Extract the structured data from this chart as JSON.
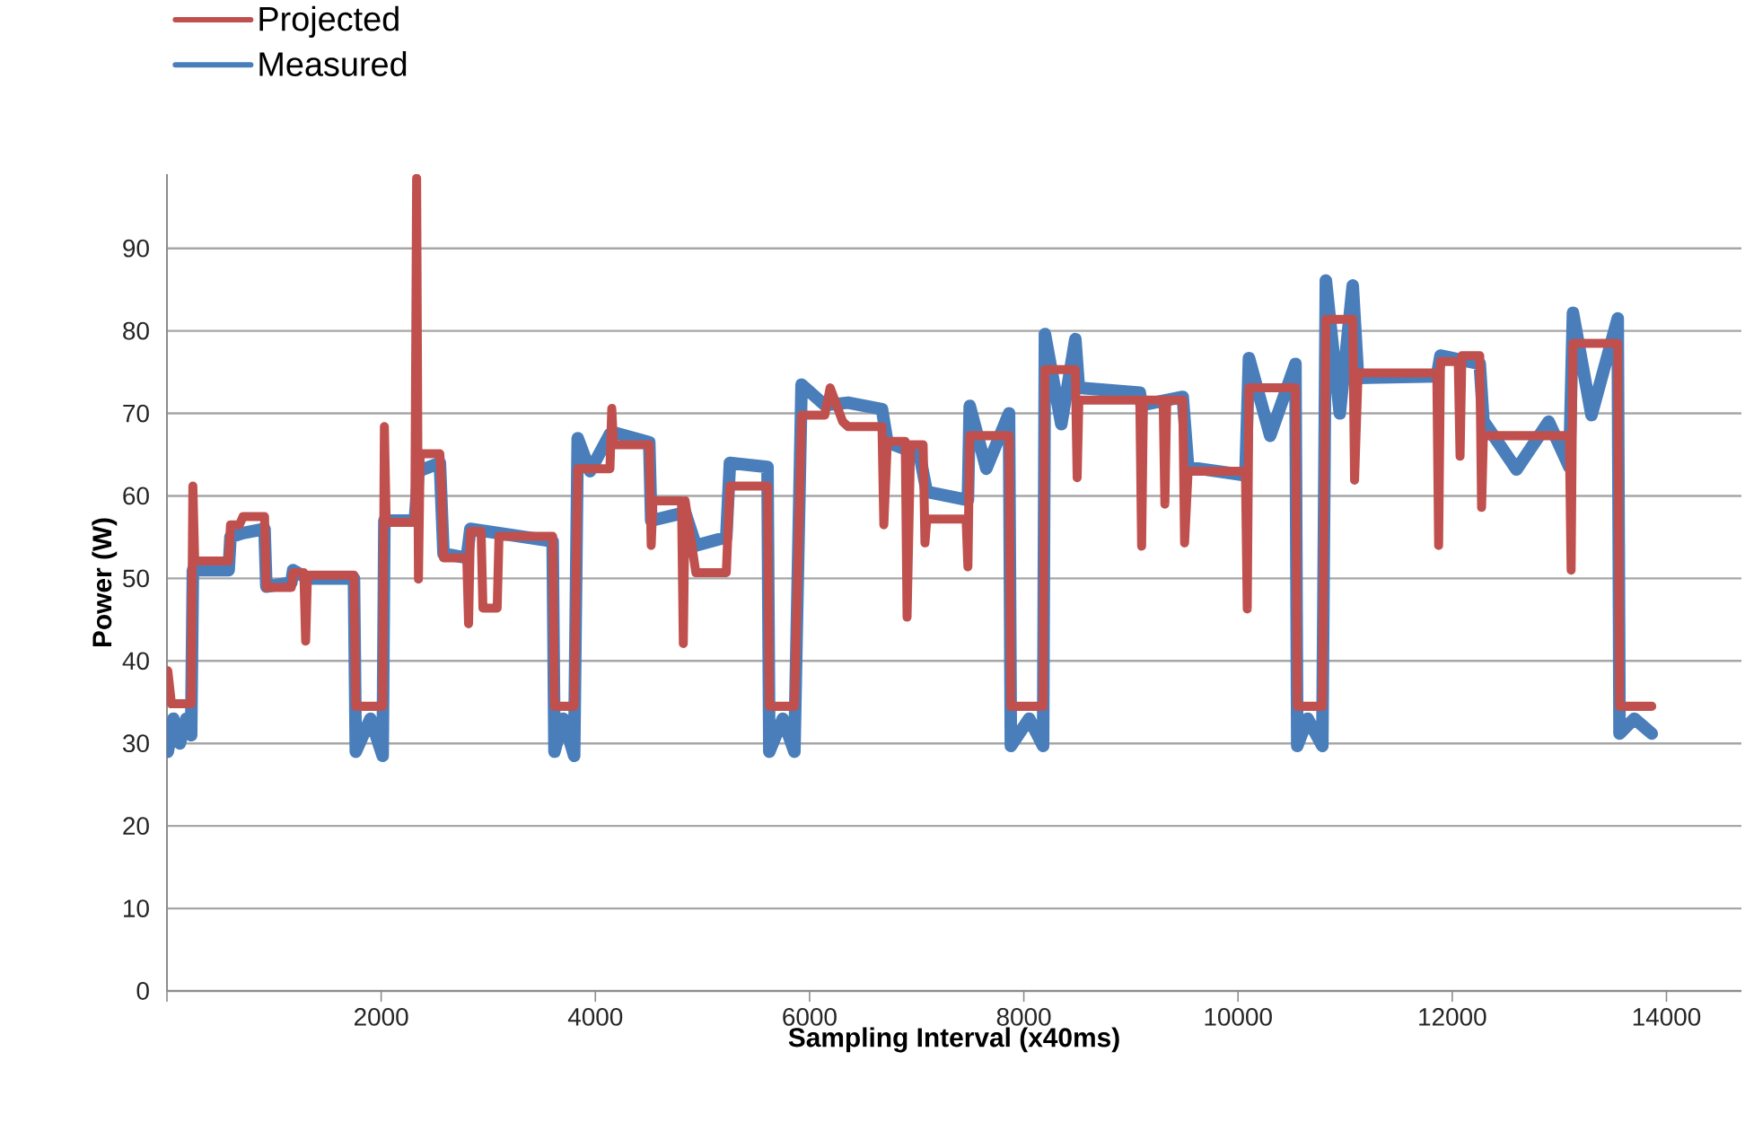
{
  "chart_data": {
    "type": "line",
    "xlabel": "Sampling Interval (x40ms)",
    "ylabel": "Power (W)",
    "xlim": [
      0,
      14700
    ],
    "ylim": [
      0,
      99
    ],
    "xticks": [
      {
        "value": 0,
        "label": null
      },
      2000,
      4000,
      6000,
      8000,
      10000,
      12000,
      14000
    ],
    "yticks": [
      0,
      10,
      20,
      30,
      40,
      50,
      60,
      70,
      80,
      90
    ],
    "grid": "y",
    "legend": "top left",
    "marker": "none",
    "line_style": "solid",
    "series": [
      {
        "name": "Projected",
        "color": "#c0504d",
        "x": [
          8,
          42,
          226,
          242,
          259,
          576,
          593,
          677,
          710,
          911,
          928,
          1161,
          1178,
          1278,
          1295,
          1312,
          1746,
          1763,
          2014,
          2030,
          2047,
          2314,
          2331,
          2348,
          2364,
          2548,
          2565,
          2582,
          2799,
          2816,
          2833,
          2933,
          2950,
          3083,
          3100,
          3601,
          3618,
          3802,
          3835,
          4136,
          4153,
          4169,
          4503,
          4521,
          4537,
          4804,
          4821,
          4838,
          4938,
          5222,
          5256,
          5607,
          5624,
          5858,
          5925,
          6142,
          6192,
          6309,
          6359,
          6676,
          6693,
          6726,
          6893,
          6910,
          6943,
          7060,
          7077,
          7094,
          7461,
          7478,
          7495,
          7862,
          7879,
          8180,
          8197,
          8481,
          8498,
          8514,
          9083,
          9100,
          9117,
          9301,
          9317,
          9334,
          9484,
          9501,
          9534,
          10069,
          10086,
          10102,
          10536,
          10553,
          10787,
          10820,
          11071,
          11088,
          11121,
          11856,
          11873,
          11890,
          12056,
          12073,
          12090,
          12257,
          12274,
          12291,
          13093,
          13110,
          13127,
          13545,
          13562,
          13863
        ],
        "values": [
          38.8,
          34.8,
          34.8,
          61.2,
          52.1,
          52.1,
          56.5,
          56.5,
          57.5,
          57.5,
          48.9,
          48.9,
          50.7,
          50.7,
          42.4,
          50.4,
          50.4,
          34.5,
          34.5,
          68.4,
          56.8,
          56.8,
          98.5,
          49.9,
          65.1,
          65.1,
          60.5,
          52.5,
          52.5,
          44.5,
          55.7,
          55.7,
          46.4,
          46.4,
          55.1,
          55.1,
          34.5,
          34.5,
          63.3,
          63.3,
          70.6,
          66.2,
          66.2,
          54.0,
          59.4,
          59.4,
          42.1,
          59.4,
          50.7,
          50.7,
          61.2,
          61.2,
          34.5,
          34.5,
          69.8,
          69.8,
          73.1,
          69.0,
          68.4,
          68.4,
          56.5,
          66.6,
          66.6,
          45.3,
          66.2,
          66.2,
          54.3,
          57.2,
          57.2,
          51.4,
          67.3,
          67.3,
          34.5,
          34.5,
          75.3,
          75.3,
          62.2,
          71.6,
          71.6,
          53.9,
          71.6,
          71.6,
          59.0,
          71.6,
          71.6,
          54.3,
          63.0,
          63.0,
          46.3,
          73.1,
          73.1,
          34.5,
          34.5,
          81.4,
          81.4,
          61.9,
          74.9,
          74.9,
          54.0,
          76.3,
          76.3,
          64.8,
          77.0,
          77.0,
          58.6,
          67.3,
          67.3,
          51.0,
          78.5,
          78.5,
          34.5,
          34.5
        ]
      },
      {
        "name": "Measured",
        "color": "#4a7ebb",
        "x": [
          8,
          60,
          120,
          180,
          226,
          242,
          576,
          593,
          710,
          911,
          928,
          1161,
          1178,
          1312,
          1746,
          1763,
          1900,
          2014,
          2030,
          2314,
          2348,
          2548,
          2582,
          2799,
          2833,
          3601,
          3618,
          3700,
          3802,
          3835,
          3950,
          4136,
          4169,
          4503,
          4521,
          4838,
          4938,
          5222,
          5256,
          5607,
          5624,
          5750,
          5858,
          5925,
          6142,
          6359,
          6676,
          6726,
          7027,
          7094,
          7478,
          7495,
          7650,
          7862,
          7879,
          8050,
          8180,
          8197,
          8350,
          8481,
          8514,
          9083,
          9100,
          9484,
          9534,
          10069,
          10102,
          10300,
          10536,
          10553,
          10650,
          10787,
          10820,
          10950,
          11071,
          11121,
          11856,
          11890,
          12257,
          12291,
          12600,
          12900,
          13093,
          13127,
          13300,
          13545,
          13562,
          13700,
          13863
        ],
        "values": [
          29,
          33,
          30,
          33,
          31,
          51,
          51,
          55,
          55.5,
          56,
          49,
          49.5,
          51,
          50,
          50,
          29,
          33,
          28.5,
          57,
          57,
          63,
          64,
          53,
          52.5,
          56,
          54.5,
          29,
          33,
          28.5,
          67,
          63,
          67.5,
          67.7,
          66.5,
          57,
          58,
          54,
          55,
          64,
          63.5,
          29,
          33,
          29,
          73.5,
          71,
          71.3,
          70.5,
          66.5,
          65,
          60.5,
          59.5,
          70.9,
          63.3,
          70,
          29.7,
          33,
          29.7,
          79.6,
          68.7,
          79,
          73.1,
          72.5,
          71,
          72,
          63.5,
          62.5,
          76.7,
          67.3,
          76,
          29.7,
          33,
          29.7,
          86.1,
          70,
          85.5,
          74.3,
          74.5,
          77,
          76,
          69.1,
          63.2,
          69,
          63.5,
          82.2,
          69.8,
          81.5,
          31.2,
          33,
          31.2
        ]
      }
    ]
  }
}
